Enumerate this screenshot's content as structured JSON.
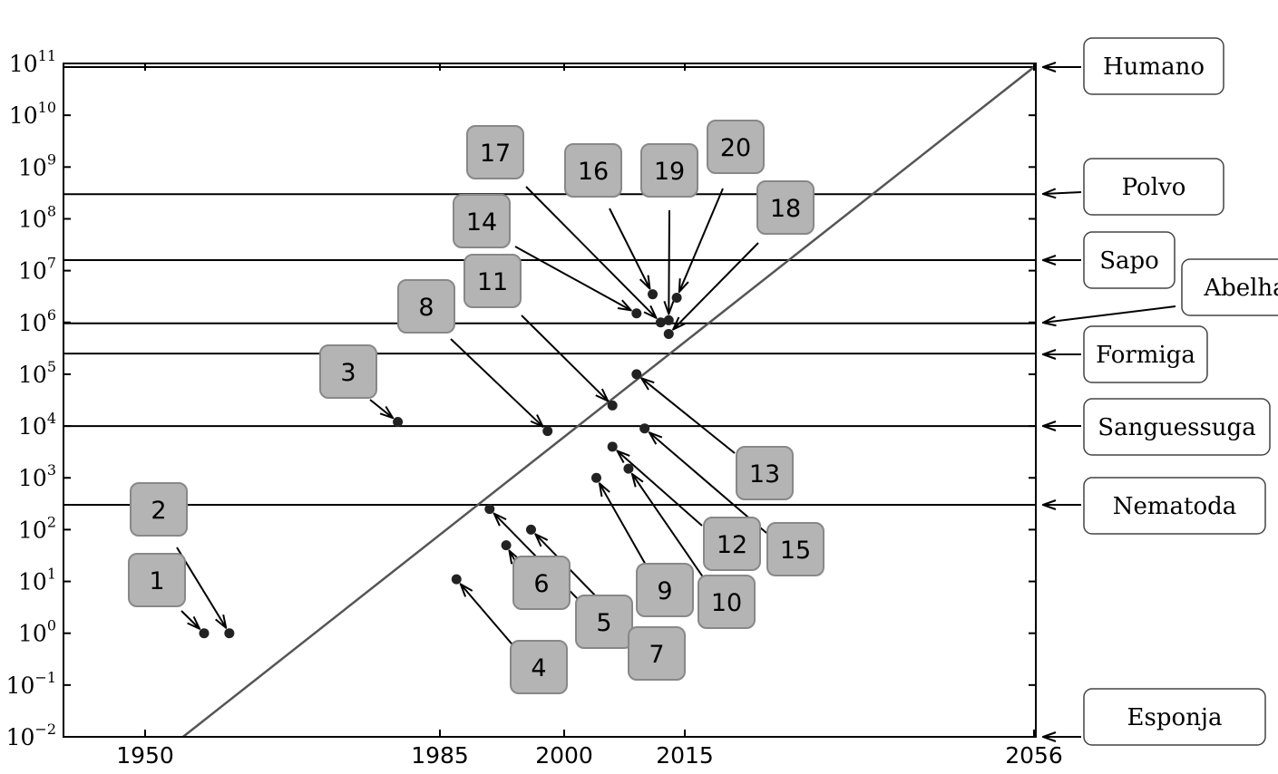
{
  "chart_data": {
    "type": "scatter",
    "title": "",
    "xlabel": "",
    "ylabel": "",
    "x_ticks": [
      "1950",
      "1985",
      "2000",
      "2015",
      "2056"
    ],
    "y_ticks": [
      {
        "base": "10",
        "exp": "11"
      },
      {
        "base": "10",
        "exp": "10"
      },
      {
        "base": "10",
        "exp": "9"
      },
      {
        "base": "10",
        "exp": "8"
      },
      {
        "base": "10",
        "exp": "7"
      },
      {
        "base": "10",
        "exp": "6"
      },
      {
        "base": "10",
        "exp": "5"
      },
      {
        "base": "10",
        "exp": "4"
      },
      {
        "base": "10",
        "exp": "3"
      },
      {
        "base": "10",
        "exp": "2"
      },
      {
        "base": "10",
        "exp": "1"
      },
      {
        "base": "10",
        "exp": "0"
      },
      {
        "base": "10",
        "exp": "−1"
      },
      {
        "base": "10",
        "exp": "−2"
      }
    ],
    "xlim": [
      1940,
      2057
    ],
    "y_scale": "log",
    "ylim": [
      0.01,
      100000000000
    ],
    "grid": false,
    "trend_line": {
      "x": [
        1954.5,
        2056
      ],
      "y": [
        0.01,
        85000000000
      ]
    },
    "reference_levels": [
      {
        "name": "Humano",
        "y": 85000000000
      },
      {
        "name": "Polvo",
        "y": 300000000
      },
      {
        "name": "Sapo",
        "y": 16000000
      },
      {
        "name": "Abelha",
        "y": 960000
      },
      {
        "name": "Formiga",
        "y": 250000
      },
      {
        "name": "Sanguessuga",
        "y": 10000
      },
      {
        "name": "Nematoda",
        "y": 302
      },
      {
        "name": "Esponja",
        "y": 0.01
      }
    ],
    "points": [
      {
        "label": "1",
        "x": 1957,
        "y": 1
      },
      {
        "label": "2",
        "x": 1960,
        "y": 1
      },
      {
        "label": "3",
        "x": 1980,
        "y": 12000
      },
      {
        "label": "4",
        "x": 1987,
        "y": 11
      },
      {
        "label": "5",
        "x": 1991,
        "y": 250
      },
      {
        "label": "6",
        "x": 1993,
        "y": 50
      },
      {
        "label": "7",
        "x": 1996,
        "y": 100
      },
      {
        "label": "8",
        "x": 1998,
        "y": 8000
      },
      {
        "label": "9",
        "x": 2004,
        "y": 1000
      },
      {
        "label": "10",
        "x": 2008,
        "y": 1500
      },
      {
        "label": "11",
        "x": 2006,
        "y": 25000
      },
      {
        "label": "12",
        "x": 2006,
        "y": 4000
      },
      {
        "label": "13",
        "x": 2009,
        "y": 100000
      },
      {
        "label": "14",
        "x": 2009,
        "y": 1500000
      },
      {
        "label": "15",
        "x": 2010,
        "y": 9000
      },
      {
        "label": "16",
        "x": 2011,
        "y": 3500000
      },
      {
        "label": "17",
        "x": 2012,
        "y": 1000000
      },
      {
        "label": "18",
        "x": 2013,
        "y": 600000
      },
      {
        "label": "19",
        "x": 2013,
        "y": 1100000
      },
      {
        "label": "20",
        "x": 2014,
        "y": 3000000
      }
    ]
  }
}
